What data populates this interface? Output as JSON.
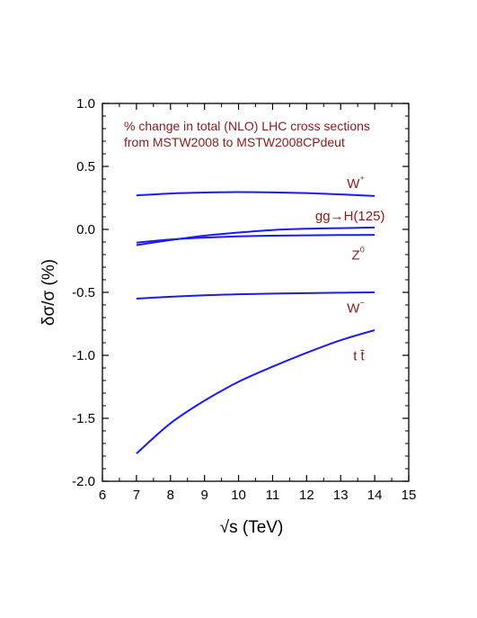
{
  "chart_data": {
    "type": "line",
    "annotation": [
      "% change in total (NLO) LHC cross sections",
      "from MSTW2008 to MSTW2008CPdeut"
    ],
    "xlabel": "√s    (TeV)",
    "ylabel": "δσ/σ     (%)",
    "xlim": [
      6,
      15
    ],
    "ylim": [
      -2.0,
      1.0
    ],
    "x_ticks": [
      "6",
      "7",
      "8",
      "9",
      "10",
      "11",
      "12",
      "13",
      "14",
      "15"
    ],
    "y_ticks": [
      "1.0",
      "0.5",
      "0.0",
      "-0.5",
      "-1.0",
      "-1.5",
      "-2.0"
    ],
    "grid": false,
    "line_color": "#1a1aff",
    "label_color": "#8b1a1a",
    "series": [
      {
        "name": "W+",
        "label_main": "W",
        "label_sup": "+",
        "label_anchor": [
          13.7,
          0.33
        ],
        "x": [
          7,
          8,
          9,
          10,
          11,
          12,
          13,
          14
        ],
        "y": [
          0.27,
          0.285,
          0.293,
          0.296,
          0.294,
          0.288,
          0.278,
          0.265
        ]
      },
      {
        "name": "gg→H(125)",
        "label_main": "gg→H(125)",
        "label_sup": "",
        "label_anchor": [
          14.3,
          0.07
        ],
        "x": [
          7,
          8,
          9,
          10,
          11,
          12,
          13,
          14
        ],
        "y": [
          -0.125,
          -0.085,
          -0.05,
          -0.025,
          -0.005,
          0.005,
          0.01,
          0.015
        ]
      },
      {
        "name": "Z0",
        "label_main": "Z",
        "label_sup": "0",
        "label_anchor": [
          13.7,
          -0.24
        ],
        "x": [
          7,
          8,
          9,
          10,
          11,
          12,
          13,
          14
        ],
        "y": [
          -0.105,
          -0.08,
          -0.065,
          -0.055,
          -0.05,
          -0.047,
          -0.045,
          -0.044
        ]
      },
      {
        "name": "W-",
        "label_main": "W",
        "label_sup": "−",
        "label_anchor": [
          13.7,
          -0.66
        ],
        "x": [
          7,
          8,
          9,
          10,
          11,
          12,
          13,
          14
        ],
        "y": [
          -0.55,
          -0.535,
          -0.523,
          -0.515,
          -0.51,
          -0.506,
          -0.503,
          -0.5
        ]
      },
      {
        "name": "tt̄",
        "label_main": "t t̄",
        "label_sup": "",
        "label_anchor": [
          13.7,
          -1.04
        ],
        "x": [
          7,
          8,
          9,
          10,
          11,
          12,
          13,
          14
        ],
        "y": [
          -1.78,
          -1.54,
          -1.36,
          -1.21,
          -1.09,
          -0.98,
          -0.88,
          -0.8
        ]
      }
    ]
  }
}
